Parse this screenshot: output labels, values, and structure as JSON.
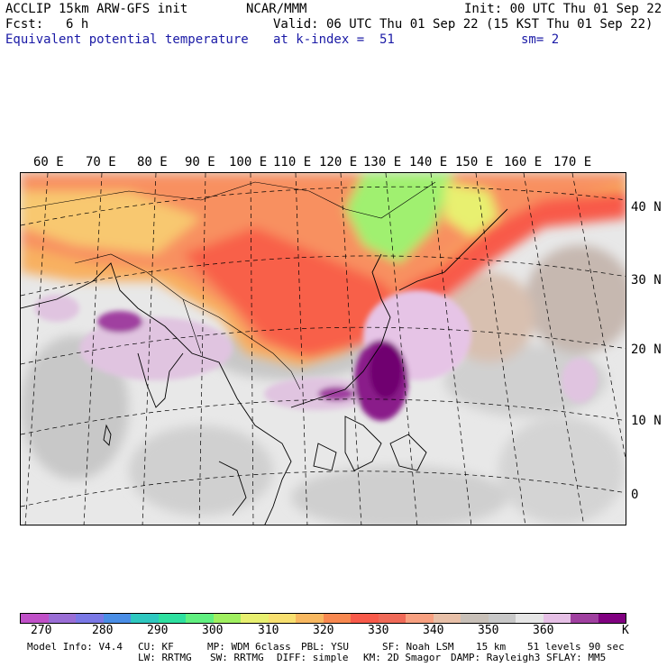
{
  "header": {
    "model": "ACCLIP 15km ARW-GFS init",
    "org": "NCAR/MMM",
    "init": "Init: 00 UTC Thu 01 Sep 22",
    "fcst_label": "Fcst:",
    "fcst_value": "6 h",
    "valid": "Valid: 06 UTC Thu 01 Sep 22 (15 KST Thu 01 Sep 22)",
    "field": "Equivalent potential temperature",
    "level": "at k-index =  51",
    "smooth": "sm= 2"
  },
  "map": {
    "lon_labels": [
      "60 E",
      "70 E",
      "80 E",
      "90 E",
      "100 E",
      "110 E",
      "120 E",
      "130 E",
      "140 E",
      "150 E",
      "160 E",
      "170 E"
    ],
    "lat_labels": [
      "40 N",
      "30 N",
      "20 N",
      "10 N",
      "0"
    ]
  },
  "colorbar": {
    "colors": [
      "#c050c8",
      "#9a6ed6",
      "#7a78e6",
      "#4a8ee6",
      "#2ec8c0",
      "#2ee0a0",
      "#60f080",
      "#a0f060",
      "#e8f070",
      "#f8e070",
      "#f8b860",
      "#f88850",
      "#f85a4a",
      "#f06a58",
      "#f8a080",
      "#e8c0a8",
      "#c8c0b8",
      "#c8c8c8",
      "#e6e6e6",
      "#e6c0e6",
      "#a040a0",
      "#800080"
    ],
    "tick_labels": [
      "270",
      "280",
      "290",
      "300",
      "310",
      "320",
      "330",
      "340",
      "350",
      "360",
      "K"
    ]
  },
  "footer": {
    "line1": [
      "Model Info: V4.4",
      "CU: KF",
      "MP: WDM 6class",
      "PBL: YSU",
      "SF: Noah LSM",
      "15 km",
      "51 levels",
      "90 sec"
    ],
    "line2": [
      "LW: RRTMG",
      "SW: RRTMG",
      "DIFF: simple",
      "KM: 2D Smagor",
      "DAMP: Rayleigh3",
      "SFLAY: MM5"
    ]
  }
}
